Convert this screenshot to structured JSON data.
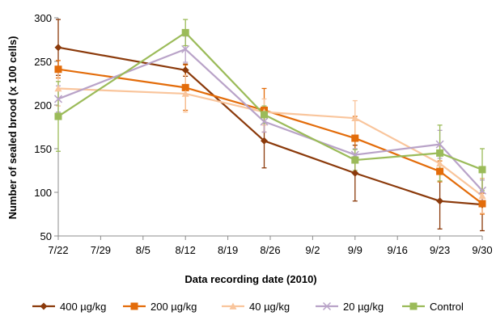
{
  "chart_data": {
    "type": "line",
    "xlabel": "Data recording date (2010)",
    "ylabel": "Number of sealed brood (x 100 cells)",
    "ylim": [
      50,
      300
    ],
    "yticks": [
      50,
      100,
      150,
      200,
      250,
      300
    ],
    "xlim_days": [
      0,
      70
    ],
    "xticks": [
      {
        "label": "7/22",
        "day": 0
      },
      {
        "label": "7/29",
        "day": 7
      },
      {
        "label": "8/5",
        "day": 14
      },
      {
        "label": "8/12",
        "day": 21
      },
      {
        "label": "8/19",
        "day": 28
      },
      {
        "label": "8/26",
        "day": 35
      },
      {
        "label": "9/2",
        "day": 42
      },
      {
        "label": "9/9",
        "day": 49
      },
      {
        "label": "9/16",
        "day": 56
      },
      {
        "label": "9/23",
        "day": 63
      },
      {
        "label": "9/30",
        "day": 70
      }
    ],
    "x_dates": [
      "7/22",
      "8/12",
      "8/25",
      "9/9",
      "9/23",
      "9/30"
    ],
    "x_days": [
      0,
      21,
      34,
      49,
      63,
      70
    ],
    "grid": false,
    "legend_position": "bottom",
    "series": [
      {
        "name": "400 µg/kg",
        "color": "#8B3A0B",
        "marker": "diamond",
        "values": [
          266,
          240,
          159,
          122,
          90,
          86
        ],
        "errors": [
          32,
          7,
          31,
          32,
          32,
          30
        ]
      },
      {
        "name": "200 µg/kg",
        "color": "#E36C0A",
        "marker": "square",
        "values": [
          241,
          220,
          194,
          162,
          124,
          87
        ],
        "errors": [
          10,
          26,
          25,
          25,
          12,
          12
        ]
      },
      {
        "name": "40 µg/kg",
        "color": "#F9C59C",
        "marker": "triangle",
        "values": [
          219,
          213,
          192,
          185,
          133,
          96
        ],
        "errors": [
          20,
          21,
          15,
          20,
          20,
          20
        ]
      },
      {
        "name": "20 µg/kg",
        "color": "#B9A3C8",
        "marker": "x",
        "values": [
          207,
          264,
          181,
          143,
          155,
          102
        ],
        "errors": [
          15,
          15,
          12,
          7,
          16,
          12
        ]
      },
      {
        "name": "Control",
        "color": "#9BBB59",
        "marker": "square",
        "values": [
          187,
          283,
          189,
          137,
          145,
          126
        ],
        "errors": [
          40,
          15,
          10,
          12,
          32,
          24
        ]
      }
    ]
  }
}
